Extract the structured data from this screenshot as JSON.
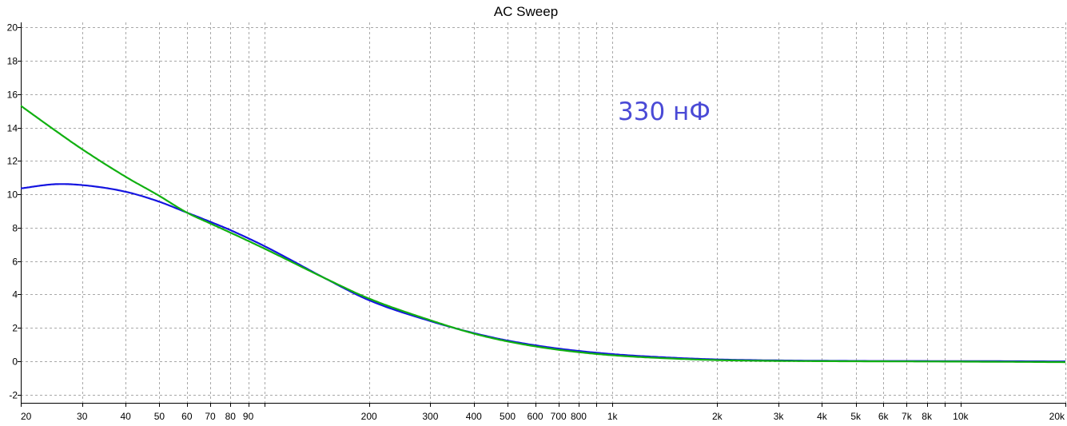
{
  "chart_data": {
    "type": "line",
    "title": "AC Sweep",
    "annotation": "330 нФ",
    "annotation_color": "#4a4ad6",
    "xscale": "log",
    "xlim": [
      20,
      20000
    ],
    "ylim": [
      -2.5,
      20.3
    ],
    "grid": true,
    "x_major_ticks": [
      20,
      30,
      40,
      50,
      60,
      70,
      80,
      90,
      100,
      200,
      300,
      400,
      500,
      600,
      700,
      800,
      900,
      1000,
      2000,
      3000,
      4000,
      5000,
      6000,
      7000,
      8000,
      9000,
      10000,
      20000
    ],
    "x_tick_labels": [
      {
        "value": 20,
        "label": "20"
      },
      {
        "value": 30,
        "label": "30"
      },
      {
        "value": 40,
        "label": "40"
      },
      {
        "value": 50,
        "label": "50"
      },
      {
        "value": 60,
        "label": "60"
      },
      {
        "value": 70,
        "label": "70"
      },
      {
        "value": 80,
        "label": "80"
      },
      {
        "value": 90,
        "label": "90"
      },
      {
        "value": 200,
        "label": "200"
      },
      {
        "value": 300,
        "label": "300"
      },
      {
        "value": 400,
        "label": "400"
      },
      {
        "value": 500,
        "label": "500"
      },
      {
        "value": 600,
        "label": "600"
      },
      {
        "value": 700,
        "label": "700"
      },
      {
        "value": 800,
        "label": "800"
      },
      {
        "value": 1000,
        "label": "1k"
      },
      {
        "value": 2000,
        "label": "2k"
      },
      {
        "value": 3000,
        "label": "3k"
      },
      {
        "value": 4000,
        "label": "4k"
      },
      {
        "value": 5000,
        "label": "5k"
      },
      {
        "value": 6000,
        "label": "6k"
      },
      {
        "value": 7000,
        "label": "7k"
      },
      {
        "value": 8000,
        "label": "8k"
      },
      {
        "value": 10000,
        "label": "10k"
      },
      {
        "value": 20000,
        "label": "20k"
      }
    ],
    "y_ticks": [
      {
        "value": 20,
        "label": "20"
      },
      {
        "value": 18,
        "label": "18"
      },
      {
        "value": 16,
        "label": "16"
      },
      {
        "value": 14,
        "label": "14"
      },
      {
        "value": 12,
        "label": "12"
      },
      {
        "value": 10,
        "label": "10"
      },
      {
        "value": 8,
        "label": "8"
      },
      {
        "value": 6,
        "label": "6"
      },
      {
        "value": 4,
        "label": "4"
      },
      {
        "value": 2,
        "label": "2"
      },
      {
        "value": 0,
        "label": "0"
      },
      {
        "value": -2,
        "label": "-2"
      }
    ],
    "series": [
      {
        "color": "#1414e0",
        "x": [
          20,
          25,
          30,
          40,
          50,
          60,
          70,
          80,
          100,
          150,
          200,
          300,
          400,
          500,
          700,
          1000,
          1500,
          2000,
          3000,
          5000,
          10000,
          20000
        ],
        "y": [
          10.35,
          10.6,
          10.55,
          10.15,
          9.55,
          8.9,
          8.35,
          7.85,
          6.9,
          4.95,
          3.65,
          2.4,
          1.68,
          1.23,
          0.75,
          0.42,
          0.2,
          0.1,
          0.04,
          0.01,
          0.0,
          -0.02
        ]
      },
      {
        "color": "#11b011",
        "x": [
          20,
          25,
          30,
          40,
          50,
          60,
          70,
          80,
          100,
          150,
          200,
          300,
          400,
          500,
          700,
          1000,
          1500,
          2000,
          3000,
          5000,
          10000,
          20000
        ],
        "y": [
          15.3,
          13.85,
          12.7,
          11.05,
          9.9,
          8.9,
          8.25,
          7.7,
          6.75,
          4.95,
          3.75,
          2.45,
          1.65,
          1.18,
          0.68,
          0.35,
          0.15,
          0.06,
          0.01,
          -0.01,
          -0.03,
          -0.06
        ]
      }
    ]
  }
}
